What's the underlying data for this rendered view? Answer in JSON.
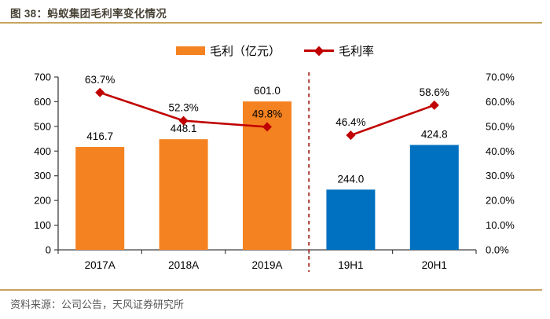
{
  "header": {
    "title": "图 38：蚂蚁集团毛利率变化情况"
  },
  "legend": {
    "bar_label": "毛利（亿元）",
    "line_label": "毛利率"
  },
  "footer": {
    "source": "资料来源：公司公告，天风证券研究所"
  },
  "colors": {
    "bar_orange": "#F58220",
    "bar_blue": "#0070C0",
    "line_red": "#C00000",
    "divider_red": "#B04A42",
    "rule_gold": "#C8A35F",
    "axis": "#404040",
    "title_text": "#474236",
    "source_text": "#595959",
    "label_text": "#000000"
  },
  "chart_data": {
    "type": "bar",
    "subtype": "bar-line-combo",
    "title": "蚂蚁集团毛利率变化情况",
    "categories": [
      "2017A",
      "2018A",
      "2019A",
      "19H1",
      "20H1"
    ],
    "series": [
      {
        "name": "毛利（亿元）",
        "type": "bar",
        "axis": "left",
        "values": [
          416.7,
          448.1,
          601.0,
          244.0,
          424.8
        ],
        "bar_colors": [
          "#F58220",
          "#F58220",
          "#F58220",
          "#0070C0",
          "#0070C0"
        ]
      },
      {
        "name": "毛利率",
        "type": "line",
        "axis": "right",
        "values": [
          63.7,
          52.3,
          49.8,
          46.4,
          58.6
        ],
        "unit": "%",
        "color": "#C00000",
        "broken_after_index": 2
      }
    ],
    "left_axis": {
      "min": 0,
      "max": 700,
      "step": 100
    },
    "right_axis": {
      "min": 0,
      "max": 70,
      "step": 10,
      "suffix": "%",
      "decimals": 1
    },
    "separator_after_index": 2,
    "legend_position": "top-center",
    "grid": false,
    "xlabel": "",
    "ylabel": ""
  }
}
